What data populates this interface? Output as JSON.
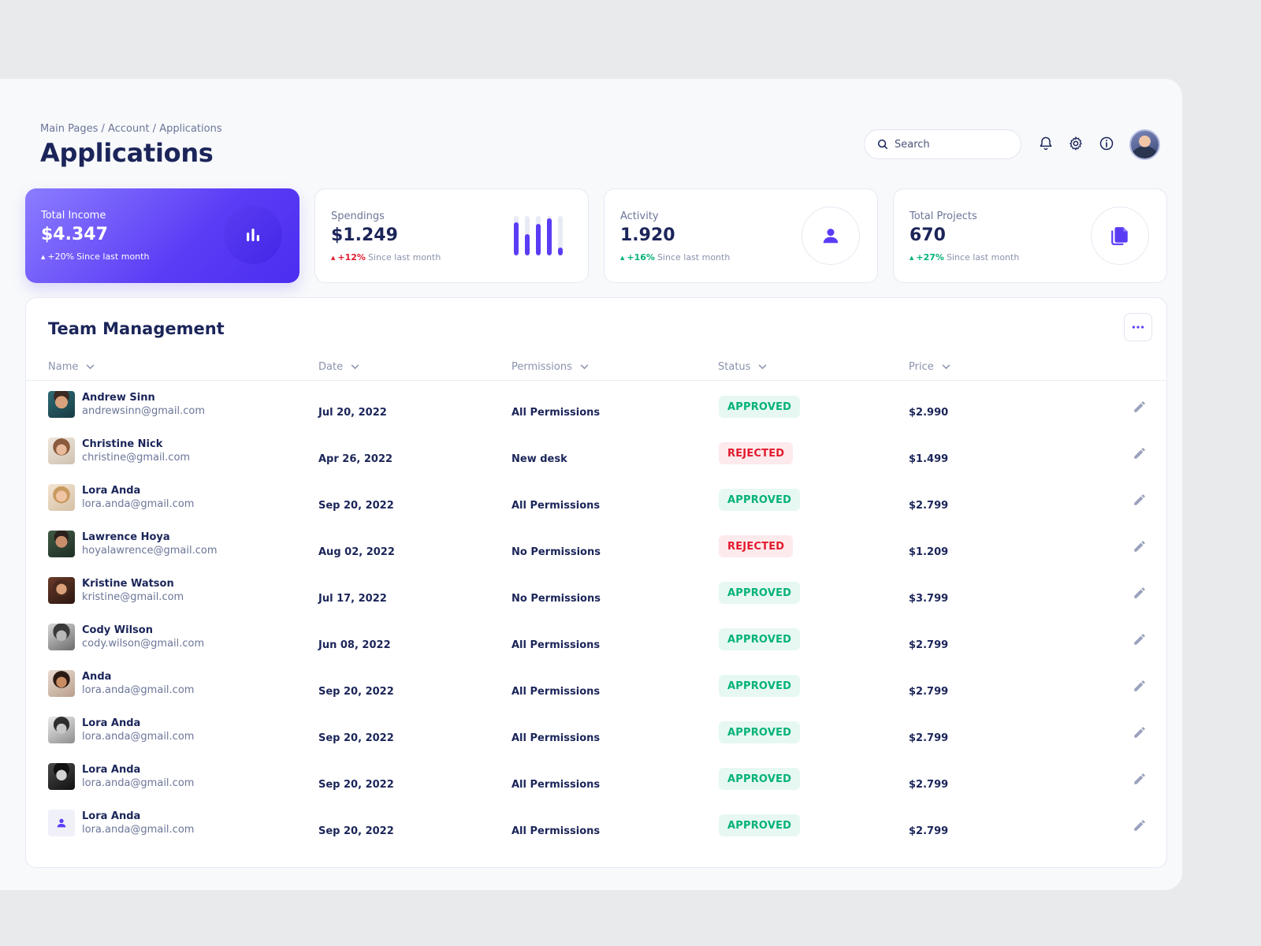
{
  "breadcrumb": "Main Pages / Account / Applications",
  "page_title": "Applications",
  "search": {
    "placeholder": "Search"
  },
  "header_icons": [
    "bell-icon",
    "gear-icon",
    "info-icon"
  ],
  "colors": {
    "accent": "#5b3cf5",
    "text": "#1b2559",
    "approved": "#04b277",
    "rejected": "#e31b2f"
  },
  "stats": [
    {
      "label": "Total Income",
      "value": "$4.347",
      "change": "+20%",
      "since": "Since last month",
      "change_color": "#ffffff",
      "icon": "bar-chart-icon"
    },
    {
      "label": "Spendings",
      "value": "$1.249",
      "change": "+12%",
      "since": "Since last month",
      "change_color": "#e31b2f",
      "mini_bars": [
        0.85,
        0.55,
        0.8,
        0.95,
        0.2
      ]
    },
    {
      "label": "Activity",
      "value": "1.920",
      "change": "+16%",
      "since": "Since last month",
      "change_color": "#04b277",
      "icon": "person-icon"
    },
    {
      "label": "Total Projects",
      "value": "670",
      "change": "+27%",
      "since": "Since last month",
      "change_color": "#04b277",
      "icon": "documents-icon"
    }
  ],
  "team": {
    "title": "Team Management",
    "columns": [
      "Name",
      "Date",
      "Permissions",
      "Status",
      "Price"
    ],
    "rows": [
      {
        "name": "Andrew Sinn",
        "email": "andrewsinn@gmail.com",
        "date": "Jul 20, 2022",
        "permissions": "All Permissions",
        "status": "APPROVED",
        "price": "$2.990"
      },
      {
        "name": "Christine Nick",
        "email": "christine@gmail.com",
        "date": "Apr 26, 2022",
        "permissions": "New desk",
        "status": "REJECTED",
        "price": "$1.499"
      },
      {
        "name": "Lora Anda",
        "email": "lora.anda@gmail.com",
        "date": "Sep 20, 2022",
        "permissions": "All Permissions",
        "status": "APPROVED",
        "price": "$2.799"
      },
      {
        "name": "Lawrence Hoya",
        "email": "hoyalawrence@gmail.com",
        "date": "Aug 02, 2022",
        "permissions": "No Permissions",
        "status": "REJECTED",
        "price": "$1.209"
      },
      {
        "name": "Kristine Watson",
        "email": "kristine@gmail.com",
        "date": "Jul 17, 2022",
        "permissions": "No Permissions",
        "status": "APPROVED",
        "price": "$3.799"
      },
      {
        "name": "Cody Wilson",
        "email": "cody.wilson@gmail.com",
        "date": "Jun 08, 2022",
        "permissions": "All Permissions",
        "status": "APPROVED",
        "price": "$2.799"
      },
      {
        "name": "Anda",
        "email": "lora.anda@gmail.com",
        "date": "Sep 20, 2022",
        "permissions": "All Permissions",
        "status": "APPROVED",
        "price": "$2.799"
      },
      {
        "name": "Lora Anda",
        "email": "lora.anda@gmail.com",
        "date": "Sep 20, 2022",
        "permissions": "All Permissions",
        "status": "APPROVED",
        "price": "$2.799"
      },
      {
        "name": "Lora Anda",
        "email": "lora.anda@gmail.com",
        "date": "Sep 20, 2022",
        "permissions": "All Permissions",
        "status": "APPROVED",
        "price": "$2.799"
      },
      {
        "name": "Lora Anda",
        "email": "lora.anda@gmail.com",
        "date": "Sep 20, 2022",
        "permissions": "All Permissions",
        "status": "APPROVED",
        "price": "$2.799"
      }
    ]
  }
}
